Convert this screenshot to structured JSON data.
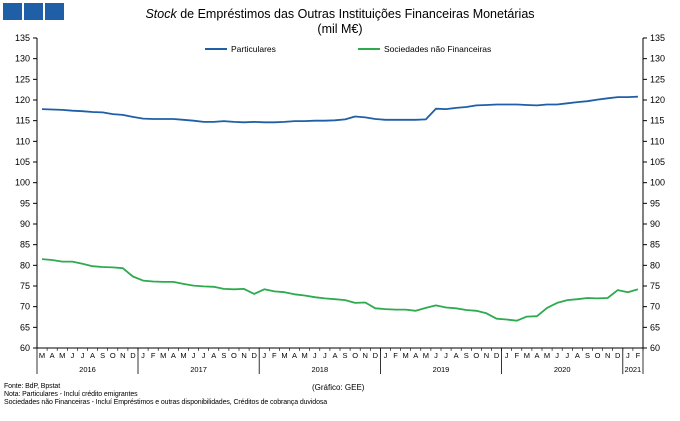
{
  "header": {
    "title_italic": "Stock",
    "title_rest": " de Empréstimos das Outras Instituições Financeiras Monetárias",
    "unit": "(mil M€)"
  },
  "footer": {
    "source": "Fonte: BdP, Bpstat",
    "note1": "Nota: Particulares - Incluí crédito emigrantes",
    "note2": "Sociedades não Financeiras - Incluí Empréstimos e outras disponibilidades, Créditos de cobrança duvidosa",
    "credit": "(Gráfico: GEE)"
  },
  "chart_data": {
    "type": "line",
    "x": [
      "2016-03",
      "2016-04",
      "2016-05",
      "2016-06",
      "2016-07",
      "2016-08",
      "2016-09",
      "2016-10",
      "2016-11",
      "2016-12",
      "2017-01",
      "2017-02",
      "2017-03",
      "2017-04",
      "2017-05",
      "2017-06",
      "2017-07",
      "2017-08",
      "2017-09",
      "2017-10",
      "2017-11",
      "2017-12",
      "2018-01",
      "2018-02",
      "2018-03",
      "2018-04",
      "2018-05",
      "2018-06",
      "2018-07",
      "2018-08",
      "2018-09",
      "2018-10",
      "2018-11",
      "2018-12",
      "2019-01",
      "2019-02",
      "2019-03",
      "2019-04",
      "2019-05",
      "2019-06",
      "2019-07",
      "2019-08",
      "2019-09",
      "2019-10",
      "2019-11",
      "2019-12",
      "2020-01",
      "2020-02",
      "2020-03",
      "2020-04",
      "2020-05",
      "2020-06",
      "2020-07",
      "2020-08",
      "2020-09",
      "2020-10",
      "2020-11",
      "2020-12",
      "2021-01",
      "2021-02"
    ],
    "month_labels": [
      "M",
      "A",
      "M",
      "J",
      "J",
      "A",
      "S",
      "O",
      "N",
      "D",
      "J",
      "F",
      "M",
      "A",
      "M",
      "J",
      "J",
      "A",
      "S",
      "O",
      "N",
      "D",
      "J",
      "F",
      "M",
      "A",
      "M",
      "J",
      "J",
      "A",
      "S",
      "O",
      "N",
      "D",
      "J",
      "F",
      "M",
      "A",
      "M",
      "J",
      "J",
      "A",
      "S",
      "O",
      "N",
      "D",
      "J",
      "F",
      "M",
      "A",
      "M",
      "J",
      "J",
      "A",
      "S",
      "O",
      "N",
      "D",
      "J",
      "F"
    ],
    "year_labels": [
      {
        "label": "2016",
        "start": 0,
        "end": 9
      },
      {
        "label": "2017",
        "start": 10,
        "end": 21
      },
      {
        "label": "2018",
        "start": 22,
        "end": 33
      },
      {
        "label": "2019",
        "start": 34,
        "end": 45
      },
      {
        "label": "2020",
        "start": 46,
        "end": 57
      },
      {
        "label": "2021",
        "start": 58,
        "end": 59
      }
    ],
    "series": [
      {
        "name": "Particulares",
        "color": "#1f5fa8",
        "values": [
          117.8,
          117.7,
          117.6,
          117.4,
          117.3,
          117.1,
          117.0,
          116.6,
          116.4,
          115.9,
          115.5,
          115.4,
          115.4,
          115.4,
          115.2,
          115.0,
          114.7,
          114.7,
          114.9,
          114.7,
          114.6,
          114.7,
          114.6,
          114.6,
          114.7,
          114.9,
          114.9,
          115.0,
          115.0,
          115.1,
          115.3,
          116.0,
          115.8,
          115.4,
          115.2,
          115.2,
          115.2,
          115.2,
          115.3,
          117.9,
          117.8,
          118.1,
          118.3,
          118.7,
          118.8,
          118.9,
          118.9,
          118.9,
          118.8,
          118.7,
          118.9,
          118.9,
          119.2,
          119.5,
          119.7,
          120.1,
          120.4,
          120.7,
          120.7,
          120.8
        ]
      },
      {
        "name": "Sociedades não Financeiras",
        "color": "#2eaa4f",
        "values": [
          81.5,
          81.3,
          80.9,
          80.9,
          80.4,
          79.8,
          79.6,
          79.5,
          79.3,
          77.3,
          76.3,
          76.1,
          76.0,
          76.0,
          75.5,
          75.1,
          74.9,
          74.8,
          74.3,
          74.2,
          74.3,
          73.1,
          74.2,
          73.7,
          73.5,
          73.0,
          72.7,
          72.3,
          72.0,
          71.8,
          71.6,
          70.9,
          71.0,
          69.6,
          69.4,
          69.3,
          69.3,
          69.0,
          69.7,
          70.3,
          69.8,
          69.6,
          69.2,
          69.0,
          68.4,
          67.1,
          66.9,
          66.6,
          67.6,
          67.7,
          69.7,
          70.9,
          71.6,
          71.8,
          72.1,
          72.0,
          72.1,
          74.0,
          73.5,
          74.2
        ]
      }
    ],
    "ylim": [
      60,
      135
    ],
    "yticks": [
      60,
      65,
      70,
      75,
      80,
      85,
      90,
      95,
      100,
      105,
      110,
      115,
      120,
      125,
      130,
      135
    ],
    "legend_position": "top"
  }
}
